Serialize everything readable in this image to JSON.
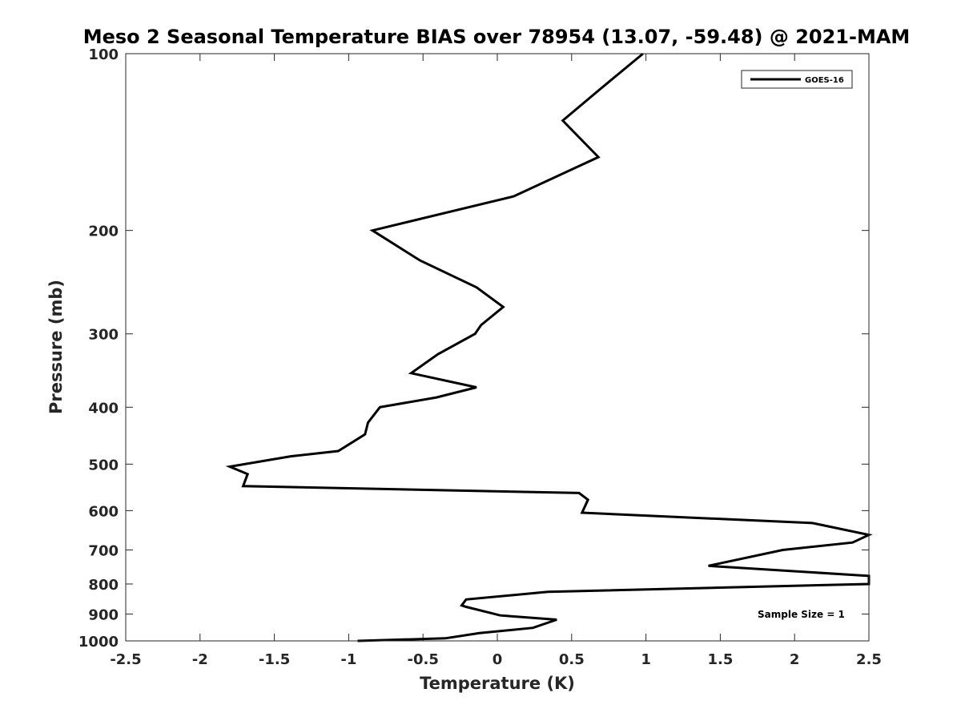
{
  "chart_data": {
    "type": "line",
    "title": "Meso 2 Seasonal Temperature BIAS over 78954 (13.07, -59.48) @ 2021-MAM",
    "xlabel": "Temperature (K)",
    "ylabel": "Pressure (mb)",
    "xlim": [
      -2.5,
      2.5
    ],
    "ylim": [
      100,
      1000
    ],
    "y_scale": "log",
    "y_reversed": true,
    "x_ticks": [
      "-2.5",
      "-2",
      "-1.5",
      "-1",
      "-0.5",
      "0",
      "0.5",
      "1",
      "1.5",
      "2",
      "2.5"
    ],
    "x_tick_values": [
      -2.5,
      -2,
      -1.5,
      -1,
      -0.5,
      0,
      0.5,
      1,
      1.5,
      2,
      2.5
    ],
    "y_ticks": [
      "100",
      "200",
      "300",
      "400",
      "500",
      "600",
      "700",
      "800",
      "900",
      "1000"
    ],
    "y_tick_values": [
      100,
      200,
      300,
      400,
      500,
      600,
      700,
      800,
      900,
      1000
    ],
    "grid": false,
    "legend_position": "top-right",
    "series": [
      {
        "name": "GOES-16",
        "color": "#000000",
        "x": [
          0.98,
          0.69,
          0.44,
          0.68,
          0.11,
          -0.84,
          -0.52,
          -0.14,
          0.04,
          -0.11,
          -0.15,
          -0.4,
          -0.58,
          -0.14,
          -0.41,
          -0.79,
          -0.87,
          -0.89,
          -1.07,
          -1.39,
          -1.8,
          -1.68,
          -1.71,
          0.55,
          0.61,
          0.57,
          2.12,
          2.5,
          2.39,
          1.92,
          1.42,
          2.5,
          2.5,
          0.34,
          -0.21,
          -0.24,
          -0.21,
          0.02,
          0.4,
          0.24,
          -0.12,
          -0.35,
          -0.94
        ],
        "y": [
          100,
          115,
          130,
          150,
          175,
          200,
          225,
          250,
          270,
          290,
          300,
          325,
          350,
          370,
          385,
          400,
          425,
          445,
          475,
          485,
          505,
          520,
          545,
          560,
          575,
          605,
          630,
          660,
          680,
          700,
          745,
          775,
          800,
          825,
          850,
          870,
          875,
          905,
          920,
          950,
          970,
          990,
          1000
        ]
      }
    ],
    "annotation": "Sample Size = 1"
  }
}
